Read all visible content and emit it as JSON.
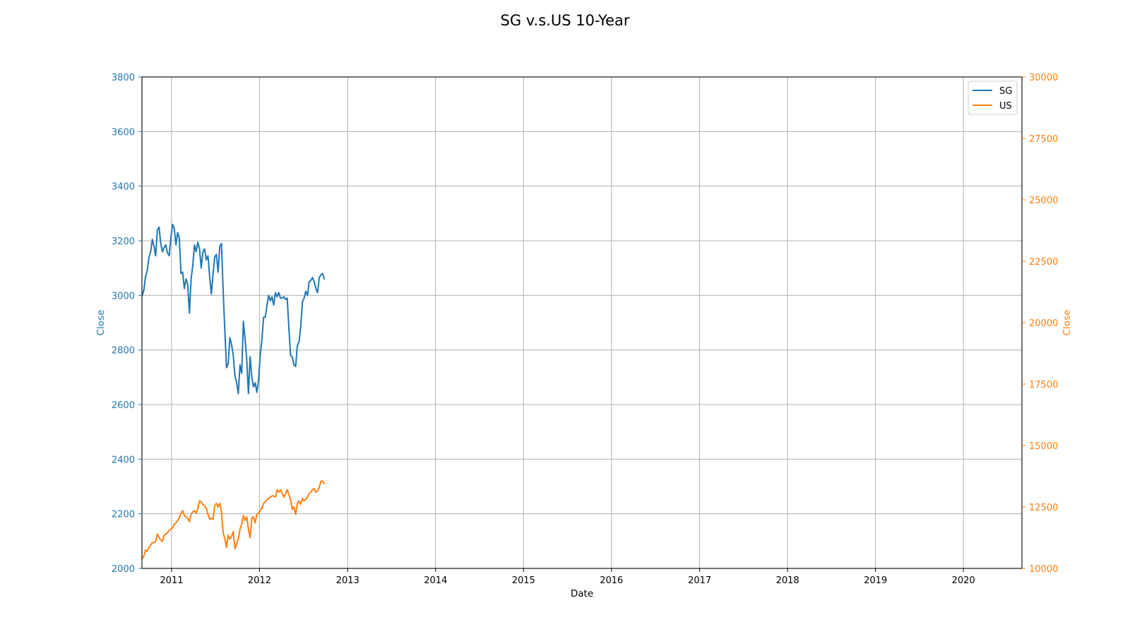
{
  "chart_data": {
    "type": "line",
    "title": "SG v.s.US 10-Year",
    "xlabel": "Date",
    "ylabel_left": "Close",
    "ylabel_right": "Close",
    "x_range": [
      "2010-08-31",
      "2020-08-31"
    ],
    "x_ticks": [
      "2011",
      "2012",
      "2013",
      "2014",
      "2015",
      "2016",
      "2017",
      "2018",
      "2019",
      "2020"
    ],
    "y_left_range": [
      2000,
      3800
    ],
    "y_left_ticks": [
      2000,
      2200,
      2400,
      2600,
      2800,
      3000,
      3200,
      3400,
      3600,
      3800
    ],
    "y_right_range": [
      10000,
      30000
    ],
    "y_right_ticks": [
      10000,
      12500,
      15000,
      17500,
      20000,
      22500,
      25000,
      27500,
      30000
    ],
    "grid": true,
    "legend_position": "top-right",
    "colors": {
      "SG": "#1f77b4",
      "US": "#ff7f0e"
    },
    "series": [
      {
        "name": "SG",
        "axis": "left",
        "points": [
          [
            "2010-09-01",
            3000
          ],
          [
            "2010-09-08",
            3020
          ],
          [
            "2010-09-15",
            3070
          ],
          [
            "2010-09-22",
            3090
          ],
          [
            "2010-09-29",
            3140
          ],
          [
            "2010-10-06",
            3160
          ],
          [
            "2010-10-13",
            3205
          ],
          [
            "2010-10-20",
            3180
          ],
          [
            "2010-10-27",
            3145
          ],
          [
            "2010-11-03",
            3240
          ],
          [
            "2010-11-10",
            3250
          ],
          [
            "2010-11-17",
            3190
          ],
          [
            "2010-11-24",
            3160
          ],
          [
            "2010-12-01",
            3175
          ],
          [
            "2010-12-08",
            3185
          ],
          [
            "2010-12-15",
            3155
          ],
          [
            "2010-12-22",
            3145
          ],
          [
            "2010-12-29",
            3210
          ],
          [
            "2011-01-05",
            3260
          ],
          [
            "2011-01-12",
            3245
          ],
          [
            "2011-01-19",
            3185
          ],
          [
            "2011-01-26",
            3230
          ],
          [
            "2011-02-02",
            3210
          ],
          [
            "2011-02-09",
            3080
          ],
          [
            "2011-02-16",
            3085
          ],
          [
            "2011-02-23",
            3025
          ],
          [
            "2011-03-02",
            3060
          ],
          [
            "2011-03-09",
            3040
          ],
          [
            "2011-03-16",
            2935
          ],
          [
            "2011-03-23",
            3060
          ],
          [
            "2011-03-30",
            3110
          ],
          [
            "2011-04-06",
            3185
          ],
          [
            "2011-04-13",
            3160
          ],
          [
            "2011-04-20",
            3195
          ],
          [
            "2011-04-27",
            3170
          ],
          [
            "2011-05-04",
            3100
          ],
          [
            "2011-05-11",
            3160
          ],
          [
            "2011-05-18",
            3170
          ],
          [
            "2011-05-25",
            3130
          ],
          [
            "2011-06-01",
            3145
          ],
          [
            "2011-06-08",
            3070
          ],
          [
            "2011-06-15",
            3005
          ],
          [
            "2011-06-22",
            3075
          ],
          [
            "2011-06-29",
            3140
          ],
          [
            "2011-07-06",
            3150
          ],
          [
            "2011-07-13",
            3085
          ],
          [
            "2011-07-20",
            3180
          ],
          [
            "2011-07-27",
            3190
          ],
          [
            "2011-08-03",
            3020
          ],
          [
            "2011-08-10",
            2870
          ],
          [
            "2011-08-17",
            2735
          ],
          [
            "2011-08-24",
            2750
          ],
          [
            "2011-08-31",
            2845
          ],
          [
            "2011-09-07",
            2820
          ],
          [
            "2011-09-14",
            2780
          ],
          [
            "2011-09-21",
            2705
          ],
          [
            "2011-09-28",
            2680
          ],
          [
            "2011-10-05",
            2640
          ],
          [
            "2011-10-12",
            2745
          ],
          [
            "2011-10-19",
            2715
          ],
          [
            "2011-10-26",
            2905
          ],
          [
            "2011-11-02",
            2840
          ],
          [
            "2011-11-09",
            2765
          ],
          [
            "2011-11-16",
            2640
          ],
          [
            "2011-11-23",
            2775
          ],
          [
            "2011-11-30",
            2700
          ],
          [
            "2011-12-07",
            2665
          ],
          [
            "2011-12-14",
            2680
          ],
          [
            "2011-12-21",
            2645
          ],
          [
            "2011-12-28",
            2690
          ],
          [
            "2012-01-04",
            2780
          ],
          [
            "2012-01-11",
            2840
          ],
          [
            "2012-01-18",
            2920
          ],
          [
            "2012-01-25",
            2920
          ],
          [
            "2012-02-01",
            2965
          ],
          [
            "2012-02-08",
            3000
          ],
          [
            "2012-02-15",
            2980
          ],
          [
            "2012-02-22",
            2995
          ],
          [
            "2012-02-29",
            2965
          ],
          [
            "2012-03-07",
            3010
          ],
          [
            "2012-03-14",
            2995
          ],
          [
            "2012-03-21",
            3010
          ],
          [
            "2012-03-28",
            2990
          ],
          [
            "2012-04-04",
            2990
          ],
          [
            "2012-04-11",
            2995
          ],
          [
            "2012-04-18",
            2985
          ],
          [
            "2012-04-25",
            2990
          ],
          [
            "2012-05-02",
            2880
          ],
          [
            "2012-05-09",
            2780
          ],
          [
            "2012-05-16",
            2775
          ],
          [
            "2012-05-23",
            2745
          ],
          [
            "2012-05-30",
            2740
          ],
          [
            "2012-06-06",
            2815
          ],
          [
            "2012-06-13",
            2830
          ],
          [
            "2012-06-20",
            2885
          ],
          [
            "2012-06-27",
            2975
          ],
          [
            "2012-07-04",
            2990
          ],
          [
            "2012-07-11",
            3015
          ],
          [
            "2012-07-18",
            3000
          ],
          [
            "2012-07-25",
            3050
          ],
          [
            "2012-08-01",
            3055
          ],
          [
            "2012-08-08",
            3065
          ],
          [
            "2012-08-15",
            3050
          ],
          [
            "2012-08-22",
            3025
          ],
          [
            "2012-08-29",
            3010
          ],
          [
            "2012-09-05",
            3065
          ],
          [
            "2012-09-12",
            3075
          ],
          [
            "2012-09-19",
            3080
          ],
          [
            "2012-09-26",
            3060
          ]
        ]
      },
      {
        "name": "US",
        "axis": "right",
        "points": [
          [
            "2010-09-01",
            10400
          ],
          [
            "2010-09-08",
            10500
          ],
          [
            "2010-09-15",
            10750
          ],
          [
            "2010-09-22",
            10700
          ],
          [
            "2010-09-29",
            10850
          ],
          [
            "2010-10-06",
            10950
          ],
          [
            "2010-10-13",
            11050
          ],
          [
            "2010-10-20",
            11050
          ],
          [
            "2010-10-27",
            11100
          ],
          [
            "2010-11-03",
            11400
          ],
          [
            "2010-11-10",
            11250
          ],
          [
            "2010-11-17",
            11150
          ],
          [
            "2010-11-24",
            11100
          ],
          [
            "2010-12-01",
            11350
          ],
          [
            "2010-12-08",
            11400
          ],
          [
            "2010-12-15",
            11450
          ],
          [
            "2010-12-22",
            11550
          ],
          [
            "2010-12-29",
            11600
          ],
          [
            "2011-01-05",
            11650
          ],
          [
            "2011-01-12",
            11800
          ],
          [
            "2011-01-19",
            11850
          ],
          [
            "2011-01-26",
            11950
          ],
          [
            "2011-02-02",
            12050
          ],
          [
            "2011-02-09",
            12250
          ],
          [
            "2011-02-16",
            12350
          ],
          [
            "2011-02-23",
            12150
          ],
          [
            "2011-03-02",
            12100
          ],
          [
            "2011-03-09",
            12050
          ],
          [
            "2011-03-16",
            11900
          ],
          [
            "2011-03-23",
            12200
          ],
          [
            "2011-03-30",
            12300
          ],
          [
            "2011-04-06",
            12350
          ],
          [
            "2011-04-13",
            12250
          ],
          [
            "2011-04-20",
            12450
          ],
          [
            "2011-04-27",
            12750
          ],
          [
            "2011-05-04",
            12700
          ],
          [
            "2011-05-11",
            12600
          ],
          [
            "2011-05-18",
            12550
          ],
          [
            "2011-05-25",
            12450
          ],
          [
            "2011-06-01",
            12200
          ],
          [
            "2011-06-08",
            12000
          ],
          [
            "2011-06-15",
            12050
          ],
          [
            "2011-06-22",
            12000
          ],
          [
            "2011-06-29",
            12550
          ],
          [
            "2011-07-06",
            12650
          ],
          [
            "2011-07-13",
            12500
          ],
          [
            "2011-07-20",
            12650
          ],
          [
            "2011-07-27",
            12300
          ],
          [
            "2011-08-03",
            11450
          ],
          [
            "2011-08-10",
            11200
          ],
          [
            "2011-08-17",
            10850
          ],
          [
            "2011-08-24",
            11350
          ],
          [
            "2011-08-31",
            11200
          ],
          [
            "2011-09-07",
            11300
          ],
          [
            "2011-09-14",
            11500
          ],
          [
            "2011-09-21",
            10800
          ],
          [
            "2011-09-28",
            11000
          ],
          [
            "2011-10-05",
            11200
          ],
          [
            "2011-10-12",
            11600
          ],
          [
            "2011-10-19",
            11800
          ],
          [
            "2011-10-26",
            12150
          ],
          [
            "2011-11-02",
            11950
          ],
          [
            "2011-11-09",
            12100
          ],
          [
            "2011-11-16",
            11600
          ],
          [
            "2011-11-23",
            11250
          ],
          [
            "2011-11-30",
            12050
          ],
          [
            "2011-12-07",
            12100
          ],
          [
            "2011-12-14",
            11850
          ],
          [
            "2011-12-21",
            12200
          ],
          [
            "2011-12-28",
            12250
          ],
          [
            "2012-01-04",
            12350
          ],
          [
            "2012-01-11",
            12450
          ],
          [
            "2012-01-18",
            12650
          ],
          [
            "2012-01-25",
            12700
          ],
          [
            "2012-02-01",
            12800
          ],
          [
            "2012-02-08",
            12850
          ],
          [
            "2012-02-15",
            12900
          ],
          [
            "2012-02-22",
            12950
          ],
          [
            "2012-02-29",
            12950
          ],
          [
            "2012-03-07",
            12900
          ],
          [
            "2012-03-14",
            13200
          ],
          [
            "2012-03-21",
            13100
          ],
          [
            "2012-03-28",
            13200
          ],
          [
            "2012-04-04",
            13050
          ],
          [
            "2012-04-11",
            12900
          ],
          [
            "2012-04-18",
            13050
          ],
          [
            "2012-04-25",
            13200
          ],
          [
            "2012-05-02",
            13000
          ],
          [
            "2012-05-09",
            12800
          ],
          [
            "2012-05-16",
            12400
          ],
          [
            "2012-05-23",
            12500
          ],
          [
            "2012-05-30",
            12200
          ],
          [
            "2012-06-06",
            12650
          ],
          [
            "2012-06-13",
            12750
          ],
          [
            "2012-06-20",
            12600
          ],
          [
            "2012-06-27",
            12850
          ],
          [
            "2012-07-04",
            12750
          ],
          [
            "2012-07-11",
            12800
          ],
          [
            "2012-07-18",
            12900
          ],
          [
            "2012-07-25",
            13050
          ],
          [
            "2012-08-01",
            13100
          ],
          [
            "2012-08-08",
            13200
          ],
          [
            "2012-08-15",
            13250
          ],
          [
            "2012-08-22",
            13100
          ],
          [
            "2012-08-29",
            13150
          ],
          [
            "2012-09-05",
            13300
          ],
          [
            "2012-09-12",
            13550
          ],
          [
            "2012-09-19",
            13550
          ],
          [
            "2012-09-26",
            13450
          ]
        ]
      }
    ]
  }
}
